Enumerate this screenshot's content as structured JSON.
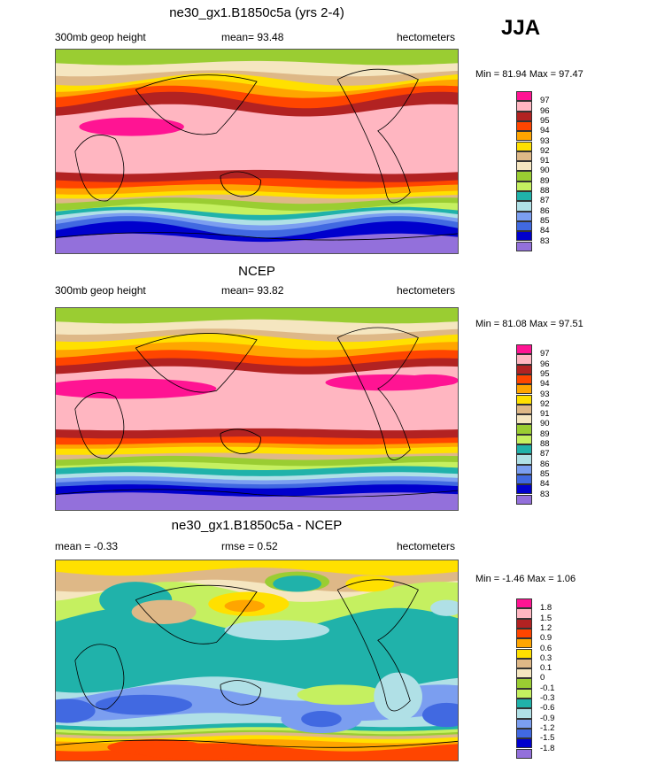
{
  "season": "JJA",
  "chart_data": [
    {
      "type": "heatmap",
      "title": "ne30_gx1.B1850c5a (yrs 2-4)",
      "left_label": "300mb geop height",
      "center_label": "mean=  93.48",
      "right_label": "hectometers",
      "minmax": "Min =  81.94 Max =  97.47",
      "min": 81.94,
      "max": 97.47,
      "mean": 93.48,
      "levels": [
        "97",
        "96",
        "95",
        "94",
        "93",
        "92",
        "91",
        "90",
        "89",
        "88",
        "87",
        "86",
        "85",
        "84",
        "83"
      ]
    },
    {
      "type": "heatmap",
      "title": "NCEP",
      "left_label": "300mb geop height",
      "center_label": "mean=  93.82",
      "right_label": "hectometers",
      "minmax": "Min =  81.08 Max =  97.51",
      "min": 81.08,
      "max": 97.51,
      "mean": 93.82,
      "levels": [
        "97",
        "96",
        "95",
        "94",
        "93",
        "92",
        "91",
        "90",
        "89",
        "88",
        "87",
        "86",
        "85",
        "84",
        "83"
      ]
    },
    {
      "type": "heatmap",
      "title": "ne30_gx1.B1850c5a - NCEP",
      "left_label": "mean =  -0.33",
      "center_label": "rmse =   0.52",
      "right_label": "hectometers",
      "minmax": "Min =  -1.46 Max =   1.06",
      "min": -1.46,
      "max": 1.06,
      "mean": -0.33,
      "rmse": 0.52,
      "levels": [
        "1.8",
        "1.5",
        "1.2",
        "0.9",
        "0.6",
        "0.3",
        "0.1",
        "0",
        "-0.1",
        "-0.3",
        "-0.6",
        "-0.9",
        "-1.2",
        "-1.5",
        "-1.8"
      ]
    }
  ],
  "colors": [
    "#ff1493",
    "#ffb6c1",
    "#b22222",
    "#ff4500",
    "#ffa500",
    "#ffe000",
    "#deb887",
    "#f5e6c0",
    "#9acd32",
    "#c5f060",
    "#20b2aa",
    "#b0e0e6",
    "#7b9ef0",
    "#4169e1",
    "#0000cd",
    "#9370db"
  ]
}
